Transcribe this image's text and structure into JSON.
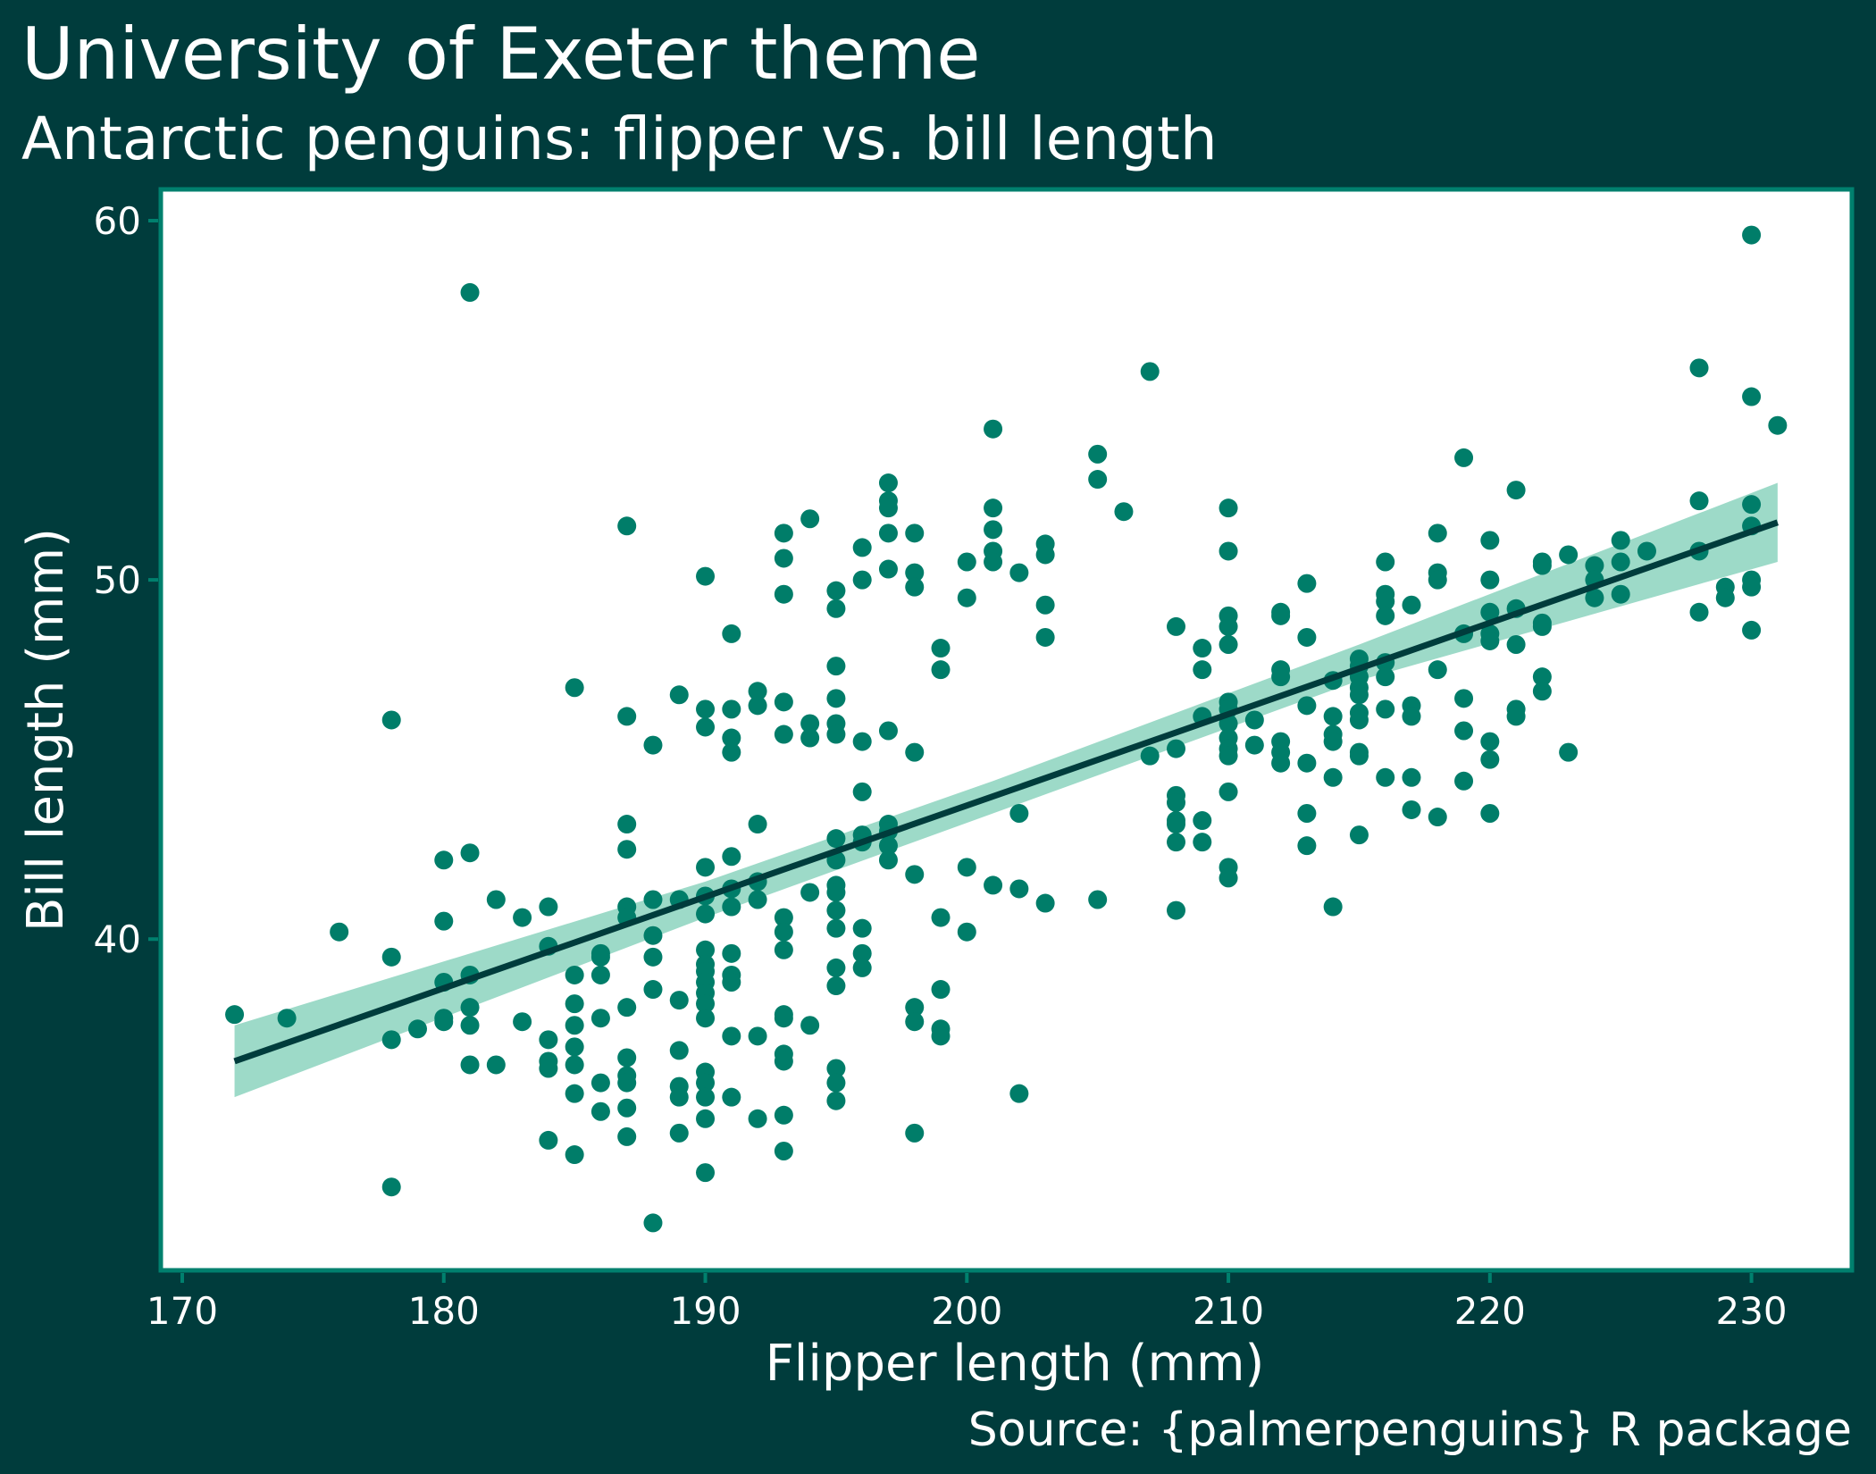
{
  "chart_data": {
    "type": "scatter",
    "title": "University of Exeter theme",
    "subtitle": "Antarctic penguins: flipper vs. bill length",
    "x_label": "Flipper length (mm)",
    "y_label": "Bill length (mm)",
    "caption": "Source: {palmerpenguins} R package",
    "xlim": [
      169.18,
      233.84
    ],
    "ylim": [
      30.78,
      60.87
    ],
    "xticks": [
      170,
      180,
      190,
      200,
      210,
      220,
      230
    ],
    "yticks": [
      40,
      50,
      60
    ],
    "grid": false,
    "points": {
      "color": "#007d69",
      "x": [
        172,
        174,
        176,
        178,
        178,
        178,
        178,
        179,
        180,
        180,
        180,
        180,
        180,
        181,
        181,
        181,
        181,
        181,
        181,
        182,
        182,
        183,
        183,
        184,
        184,
        184,
        184,
        184,
        184,
        185,
        185,
        185,
        185,
        185,
        185,
        185,
        185,
        186,
        186,
        186,
        186,
        186,
        186,
        187,
        187,
        187,
        187,
        187,
        187,
        187,
        187,
        187,
        187,
        187,
        187,
        188,
        188,
        188,
        188,
        188,
        188,
        189,
        189,
        189,
        189,
        189,
        189,
        189,
        190,
        190,
        190,
        190,
        190,
        190,
        190,
        190,
        190,
        190,
        190,
        190,
        190,
        190,
        190,
        190,
        190,
        190,
        191,
        191,
        191,
        191,
        191,
        191,
        191,
        191,
        191,
        191,
        191,
        191,
        192,
        192,
        192,
        192,
        192,
        192,
        192,
        193,
        193,
        193,
        193,
        193,
        193,
        193,
        193,
        193,
        193,
        193,
        193,
        193,
        193,
        194,
        194,
        194,
        194,
        194,
        195,
        195,
        195,
        195,
        195,
        195,
        195,
        195,
        195,
        195,
        195,
        195,
        195,
        195,
        195,
        195,
        195,
        196,
        196,
        196,
        196,
        196,
        196,
        196,
        196,
        196,
        197,
        197,
        197,
        197,
        197,
        197,
        197,
        197,
        197,
        197,
        198,
        198,
        198,
        198,
        198,
        198,
        198,
        198,
        199,
        199,
        199,
        199,
        199,
        199,
        200,
        200,
        200,
        200,
        201,
        201,
        201,
        201,
        201,
        201,
        202,
        202,
        202,
        202,
        203,
        203,
        203,
        203,
        203,
        205,
        205,
        205,
        206,
        207,
        207,
        208,
        208,
        208,
        208,
        208,
        208,
        208,
        208,
        209,
        209,
        209,
        209,
        209,
        210,
        210,
        210,
        210,
        210,
        210,
        210,
        210,
        210,
        210,
        210,
        210,
        210,
        210,
        211,
        211,
        212,
        212,
        212,
        212,
        212,
        212,
        212,
        213,
        213,
        213,
        213,
        213,
        213,
        214,
        214,
        214,
        214,
        214,
        214,
        215,
        215,
        215,
        215,
        215,
        215,
        215,
        215,
        215,
        215,
        216,
        216,
        216,
        216,
        216,
        216,
        216,
        216,
        217,
        217,
        217,
        217,
        217,
        218,
        218,
        218,
        218,
        218,
        219,
        219,
        219,
        219,
        219,
        220,
        220,
        220,
        220,
        220,
        220,
        220,
        220,
        221,
        221,
        221,
        221,
        221,
        222,
        222,
        222,
        222,
        222,
        222,
        223,
        223,
        224,
        224,
        224,
        225,
        225,
        225,
        226,
        228,
        228,
        228,
        228,
        229,
        229,
        230,
        230,
        230,
        230,
        230,
        230,
        230,
        231
      ],
      "values": [
        37.9,
        37.8,
        40.2,
        46.1,
        39.5,
        37.2,
        33.1,
        37.5,
        42.2,
        40.5,
        38.8,
        37.8,
        37.7,
        58.0,
        42.4,
        39.0,
        38.1,
        37.6,
        36.5,
        41.1,
        36.5,
        40.6,
        37.7,
        40.9,
        39.8,
        37.2,
        36.6,
        36.4,
        34.4,
        47.0,
        39.0,
        38.2,
        37.6,
        37.0,
        36.5,
        35.7,
        34.0,
        39.6,
        39.5,
        39.0,
        37.8,
        36.0,
        35.2,
        51.5,
        46.2,
        43.2,
        42.5,
        40.9,
        40.6,
        38.1,
        36.7,
        36.2,
        36.0,
        35.3,
        34.5,
        45.4,
        41.1,
        40.1,
        39.5,
        38.6,
        32.1,
        46.8,
        41.1,
        38.3,
        36.9,
        35.9,
        35.6,
        34.6,
        50.1,
        46.4,
        45.9,
        42.0,
        41.2,
        40.7,
        39.7,
        39.3,
        39.1,
        38.8,
        38.5,
        38.2,
        37.8,
        36.3,
        36.0,
        35.6,
        35.0,
        33.5,
        48.5,
        46.4,
        45.6,
        45.2,
        42.3,
        41.4,
        40.9,
        39.6,
        39.0,
        38.8,
        37.3,
        35.6,
        46.9,
        46.5,
        43.2,
        41.6,
        41.1,
        37.3,
        35.0,
        51.3,
        50.6,
        49.6,
        46.6,
        45.7,
        40.6,
        40.2,
        39.7,
        37.9,
        37.8,
        36.8,
        36.6,
        35.1,
        34.1,
        51.7,
        46.0,
        45.6,
        41.3,
        37.6,
        49.7,
        49.2,
        47.6,
        46.7,
        46.0,
        45.7,
        42.8,
        42.2,
        41.5,
        41.3,
        40.8,
        40.3,
        39.2,
        38.7,
        36.4,
        36.0,
        35.5,
        50.9,
        50.0,
        45.5,
        44.1,
        42.9,
        42.7,
        40.3,
        39.6,
        39.2,
        52.7,
        52.2,
        52.0,
        51.3,
        50.3,
        45.8,
        43.2,
        43.0,
        42.6,
        42.2,
        51.3,
        50.2,
        49.8,
        45.2,
        41.8,
        38.1,
        37.7,
        34.6,
        48.1,
        47.5,
        40.6,
        38.6,
        37.5,
        37.3,
        50.5,
        49.5,
        42.0,
        40.2,
        54.2,
        52.0,
        51.4,
        50.8,
        50.5,
        41.5,
        50.2,
        43.5,
        41.4,
        35.7,
        51.0,
        50.7,
        49.3,
        48.4,
        41.0,
        53.5,
        52.8,
        41.1,
        51.9,
        55.8,
        45.1,
        48.7,
        45.3,
        44.0,
        43.8,
        43.3,
        43.2,
        42.7,
        40.8,
        48.1,
        47.5,
        46.2,
        43.3,
        42.7,
        52.0,
        50.8,
        49.0,
        48.7,
        48.2,
        46.6,
        46.4,
        46.0,
        45.6,
        45.3,
        45.1,
        44.1,
        42.0,
        41.7,
        46.1,
        45.4,
        49.1,
        49.0,
        47.5,
        47.3,
        45.5,
        45.2,
        44.9,
        49.9,
        48.4,
        46.5,
        44.9,
        43.5,
        42.6,
        47.2,
        46.2,
        45.7,
        45.5,
        44.5,
        40.9,
        47.8,
        47.6,
        47.3,
        47.0,
        46.8,
        46.3,
        46.1,
        45.2,
        45.1,
        42.9,
        50.5,
        49.6,
        49.4,
        49.0,
        47.7,
        47.3,
        46.4,
        44.5,
        49.3,
        46.5,
        46.2,
        44.5,
        43.6,
        51.3,
        50.2,
        50.0,
        47.5,
        43.4,
        53.4,
        48.5,
        46.7,
        45.8,
        44.4,
        51.1,
        50.0,
        49.1,
        48.5,
        48.3,
        45.5,
        45.0,
        43.5,
        52.5,
        49.2,
        48.2,
        46.4,
        46.2,
        50.5,
        50.4,
        48.8,
        48.7,
        47.3,
        46.9,
        50.7,
        45.2,
        50.4,
        50.0,
        49.5,
        51.1,
        50.5,
        49.6,
        50.8,
        55.9,
        52.2,
        50.8,
        49.1,
        49.8,
        49.5,
        59.6,
        55.1,
        52.1,
        51.5,
        50.0,
        49.8,
        48.6,
        54.3
      ]
    },
    "band": {
      "color": "#9ddac8",
      "x": [
        172,
        190,
        201,
        215,
        231
      ],
      "lower": [
        35.6,
        40.6,
        43.5,
        47.2,
        50.5
      ],
      "upper": [
        37.6,
        41.6,
        44.4,
        48.2,
        52.7
      ]
    },
    "fit": {
      "color": "#003c3c",
      "x": [
        172,
        231
      ],
      "values": [
        36.6,
        51.6
      ]
    }
  }
}
